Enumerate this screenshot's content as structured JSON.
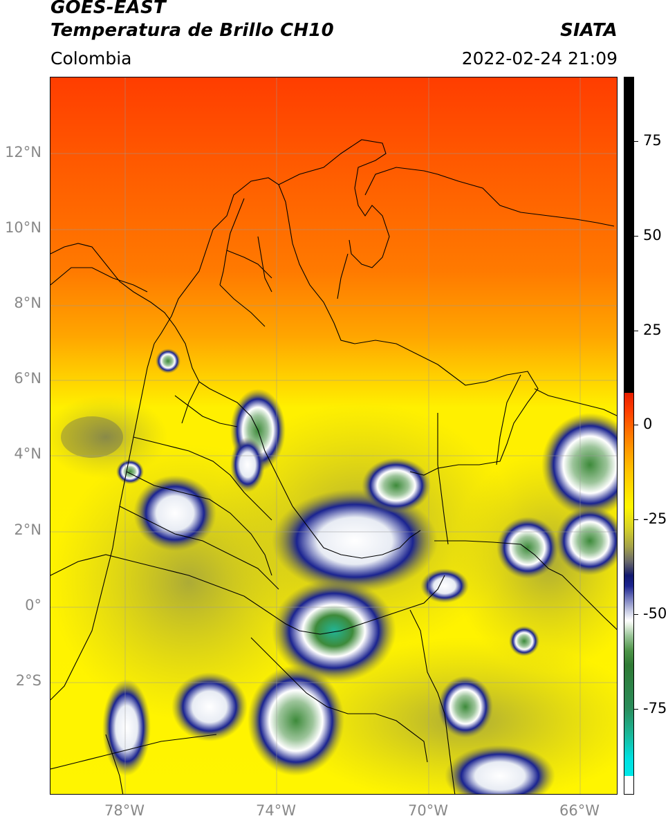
{
  "header": {
    "title_line1": "GOES-EAST",
    "title_line2": "Temperatura de Brillo CH10",
    "org": "SIATA",
    "region": "Colombia",
    "datetime": "2022-02-24 21:09"
  },
  "axes": {
    "lat_labels": [
      "12°N",
      "10°N",
      "8°N",
      "6°N",
      "4°N",
      "2°N",
      "0°",
      "2°S"
    ],
    "lat_values": [
      12,
      10,
      8,
      6,
      4,
      2,
      0,
      -2
    ],
    "lon_labels": [
      "78°W",
      "74°W",
      "70°W",
      "66°W"
    ],
    "lon_values": [
      -78,
      -74,
      -70,
      -66
    ],
    "lat_range": [
      -4.95,
      14.0
    ],
    "lon_range": [
      -80.0,
      -65.0
    ]
  },
  "colorbar": {
    "labels": [
      "75",
      "50",
      "25",
      "0",
      "-25",
      "-50",
      "-75"
    ],
    "values": [
      75,
      50,
      25,
      0,
      -25,
      -50,
      -75
    ],
    "range": [
      -100,
      90
    ]
  },
  "colors": {
    "warm_top": "#ff4d00",
    "orange": "#ff8c00",
    "yellow": "#ffee00",
    "olive": "#a8a83a",
    "navy": "#111a80",
    "white": "#ffffff",
    "green": "#3d8a3a",
    "teal": "#1fb89a",
    "black": "#000000"
  }
}
